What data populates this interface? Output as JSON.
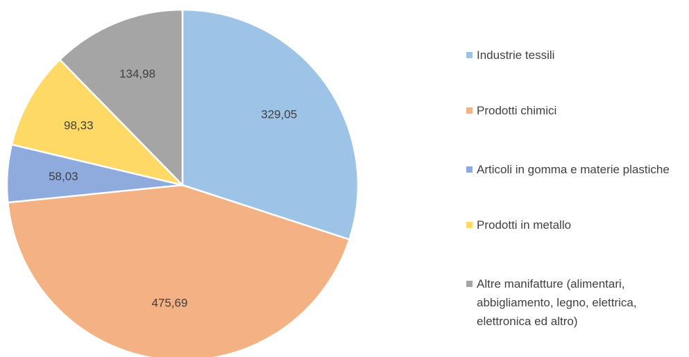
{
  "chart_data": {
    "type": "pie",
    "categories": [
      "Industrie tessili",
      "Prodotti chimici",
      "Articoli in gomma e materie plastiche",
      "Prodotti in metallo",
      "Altre manifatture (alimentari, abbigliamento, legno, elettrica, elettronica ed altro)"
    ],
    "values": [
      329.05,
      475.69,
      58.03,
      98.33,
      134.98
    ],
    "value_labels": [
      "329,05",
      "475,69",
      "58,03",
      "98,33",
      "134,98"
    ],
    "colors": [
      "#9dc3e6",
      "#f4b183",
      "#8faadc",
      "#ffd966",
      "#a5a5a5"
    ],
    "legend": "right"
  }
}
